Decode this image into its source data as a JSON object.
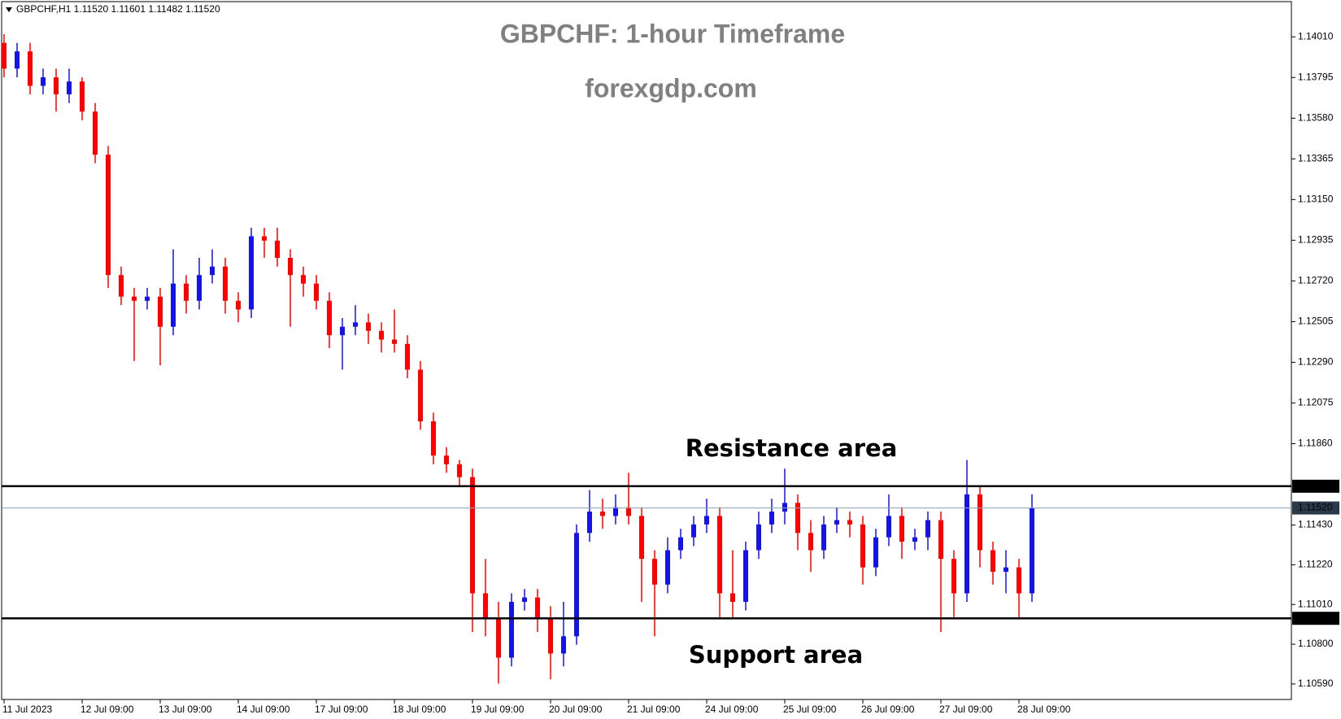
{
  "chart_data": {
    "type": "candlestick",
    "title": "GBPCHF: 1-hour Timeframe",
    "subtitle": "forexgdp.com",
    "symbol_info": "GBPCHF,H1  1.11520 1.11601 1.11482 1.11520",
    "annotations": [
      "Resistance area",
      "Support area"
    ],
    "up_color": "#1414e6",
    "down_color": "#ff0000",
    "categories": [
      "11 Jul 2023",
      null,
      null,
      null,
      null,
      null,
      "12 Jul 09:00",
      null,
      null,
      null,
      null,
      null,
      "13 Jul 09:00",
      null,
      null,
      null,
      null,
      null,
      "14 Jul 09:00",
      null,
      null,
      null,
      null,
      null,
      "17 Jul 09:00",
      null,
      null,
      null,
      null,
      null,
      "18 Jul 09:00",
      null,
      null,
      null,
      null,
      null,
      "19 Jul 09:00",
      null,
      null,
      null,
      null,
      null,
      "20 Jul 09:00",
      null,
      null,
      null,
      null,
      null,
      "21 Jul 09:00",
      null,
      null,
      null,
      null,
      null,
      "24 Jul 09:00",
      null,
      null,
      null,
      null,
      null,
      "25 Jul 09:00",
      null,
      null,
      null,
      null,
      null,
      "26 Jul 09:00",
      null,
      null,
      null,
      null,
      null,
      "27 Jul 09:00",
      null,
      null,
      null,
      null,
      null,
      "28 Jul 09:00",
      null
    ],
    "open": [
      1.13978,
      1.13842,
      1.13933,
      1.13751,
      1.13796,
      1.13706,
      1.13774,
      1.13615,
      1.13387,
      1.12751,
      1.12637,
      1.12615,
      1.12637,
      1.12478,
      1.12706,
      1.12615,
      1.12751,
      1.12796,
      1.12615,
      1.12569,
      1.12956,
      1.12933,
      1.12842,
      1.12751,
      1.12706,
      1.12615,
      1.12433,
      1.12478,
      1.12501,
      1.12456,
      1.1241,
      1.12387,
      1.12251,
      1.11978,
      1.11797,
      1.11751,
      1.11683,
      1.11069,
      1.10933,
      1.10729,
      1.11024,
      1.11047,
      1.10933,
      1.10751,
      1.10842,
      1.11388,
      1.11501,
      1.11478,
      1.11524,
      1.11478,
      1.11251,
      1.11115,
      1.11297,
      1.11365,
      1.11433,
      1.11478,
      1.11069,
      1.11024,
      1.11297,
      1.11433,
      1.11501,
      1.11547,
      1.11388,
      1.11297,
      1.11433,
      1.11456,
      1.11433,
      1.11206,
      1.11365,
      1.11478,
      1.11342,
      1.11365,
      1.11456,
      1.11251,
      1.11069,
      1.11592,
      1.11297,
      1.11183,
      1.11206,
      1.11069
    ],
    "high": [
      1.14024,
      1.13978,
      1.13978,
      1.13842,
      1.13842,
      1.13842,
      1.13796,
      1.1366,
      1.13433,
      1.12796,
      1.12683,
      1.12683,
      1.12683,
      1.12887,
      1.12751,
      1.12842,
      1.12887,
      1.12842,
      1.1266,
      1.13001,
      1.13001,
      1.13001,
      1.12887,
      1.12796,
      1.12751,
      1.1266,
      1.12524,
      1.12592,
      1.12547,
      1.12501,
      1.12569,
      1.12433,
      1.12297,
      1.12024,
      1.11842,
      1.11774,
      1.11728,
      1.11251,
      1.11024,
      1.11069,
      1.11092,
      1.11092,
      1.11001,
      1.11024,
      1.11433,
      1.11615,
      1.11569,
      1.11592,
      1.11706,
      1.11524,
      1.11297,
      1.11365,
      1.1141,
      1.11478,
      1.11569,
      1.11524,
      1.11297,
      1.11342,
      1.11501,
      1.11569,
      1.11728,
      1.11592,
      1.11456,
      1.11478,
      1.11524,
      1.11501,
      1.11478,
      1.1141,
      1.11592,
      1.11524,
      1.1141,
      1.11501,
      1.11501,
      1.11297,
      1.11774,
      1.11637,
      1.11342,
      1.11297,
      1.11251,
      1.11592
    ],
    "low": [
      1.13796,
      1.13796,
      1.13706,
      1.13706,
      1.13615,
      1.1366,
      1.13569,
      1.13342,
      1.12683,
      1.12592,
      1.12297,
      1.12569,
      1.12274,
      1.12433,
      1.12547,
      1.12569,
      1.12706,
      1.12547,
      1.12501,
      1.12524,
      1.12842,
      1.12796,
      1.12478,
      1.12637,
      1.12569,
      1.12365,
      1.12251,
      1.12433,
      1.12387,
      1.12342,
      1.12342,
      1.12206,
      1.11933,
      1.11751,
      1.11706,
      1.11637,
      1.10865,
      1.10842,
      1.10592,
      1.10683,
      1.10978,
      1.10865,
      1.10615,
      1.10683,
      1.10797,
      1.11342,
      1.1141,
      1.11433,
      1.11433,
      1.11024,
      1.10842,
      1.11069,
      1.11251,
      1.11319,
      1.11388,
      1.10933,
      1.10933,
      1.10978,
      1.11251,
      1.11388,
      1.11433,
      1.11297,
      1.11183,
      1.11251,
      1.11388,
      1.11365,
      1.11115,
      1.1116,
      1.11319,
      1.11251,
      1.11297,
      1.11297,
      1.10865,
      1.10933,
      1.11024,
      1.11206,
      1.11115,
      1.11069,
      1.10942,
      1.11024
    ],
    "close": [
      1.13842,
      1.13933,
      1.13751,
      1.13796,
      1.13706,
      1.13774,
      1.13615,
      1.13387,
      1.12751,
      1.12637,
      1.12615,
      1.12637,
      1.12478,
      1.12706,
      1.12615,
      1.12751,
      1.12796,
      1.12615,
      1.12569,
      1.12956,
      1.12933,
      1.12842,
      1.12751,
      1.12706,
      1.12615,
      1.12433,
      1.12478,
      1.12501,
      1.12456,
      1.1241,
      1.12387,
      1.12251,
      1.11978,
      1.11797,
      1.11751,
      1.11683,
      1.11069,
      1.10933,
      1.10729,
      1.11024,
      1.11047,
      1.10933,
      1.10751,
      1.10842,
      1.11388,
      1.11501,
      1.11478,
      1.11524,
      1.11478,
      1.11251,
      1.11115,
      1.11297,
      1.11365,
      1.11433,
      1.11478,
      1.11069,
      1.11024,
      1.11297,
      1.11433,
      1.11501,
      1.11547,
      1.11388,
      1.11297,
      1.11433,
      1.11456,
      1.11433,
      1.11206,
      1.11365,
      1.11478,
      1.11342,
      1.11365,
      1.11456,
      1.11251,
      1.11069,
      1.11592,
      1.11297,
      1.11183,
      1.11206,
      1.11069,
      1.1152
    ],
    "ylim": [
      1.10508,
      1.14196
    ],
    "yticks": [
      {
        "value": 1.1059,
        "label": "1.10590"
      },
      {
        "value": 1.108,
        "label": "1.10800"
      },
      {
        "value": 1.1101,
        "label": "1.11010"
      },
      {
        "value": 1.1122,
        "label": "1.11220"
      },
      {
        "value": 1.1143,
        "label": "1.11430"
      },
      {
        "value": 1.1186,
        "label": "1.11860"
      },
      {
        "value": 1.12075,
        "label": "1.12075"
      },
      {
        "value": 1.1229,
        "label": "1.12290"
      },
      {
        "value": 1.12505,
        "label": "1.12505"
      },
      {
        "value": 1.1272,
        "label": "1.12720"
      },
      {
        "value": 1.12935,
        "label": "1.12935"
      },
      {
        "value": 1.1315,
        "label": "1.13150"
      },
      {
        "value": 1.13365,
        "label": "1.13365"
      },
      {
        "value": 1.1358,
        "label": "1.13580"
      },
      {
        "value": 1.13795,
        "label": "1.13795"
      },
      {
        "value": 1.1401,
        "label": "1.14010"
      }
    ],
    "hlines": [
      {
        "value": 1.11635,
        "label": "1.11635",
        "color": "#000000"
      },
      {
        "value": 1.10937,
        "label": "1.10937",
        "color": "#000000"
      },
      {
        "value": 1.1152,
        "label": "1.11520",
        "color": "#8fa3b5"
      }
    ],
    "grid": false
  }
}
